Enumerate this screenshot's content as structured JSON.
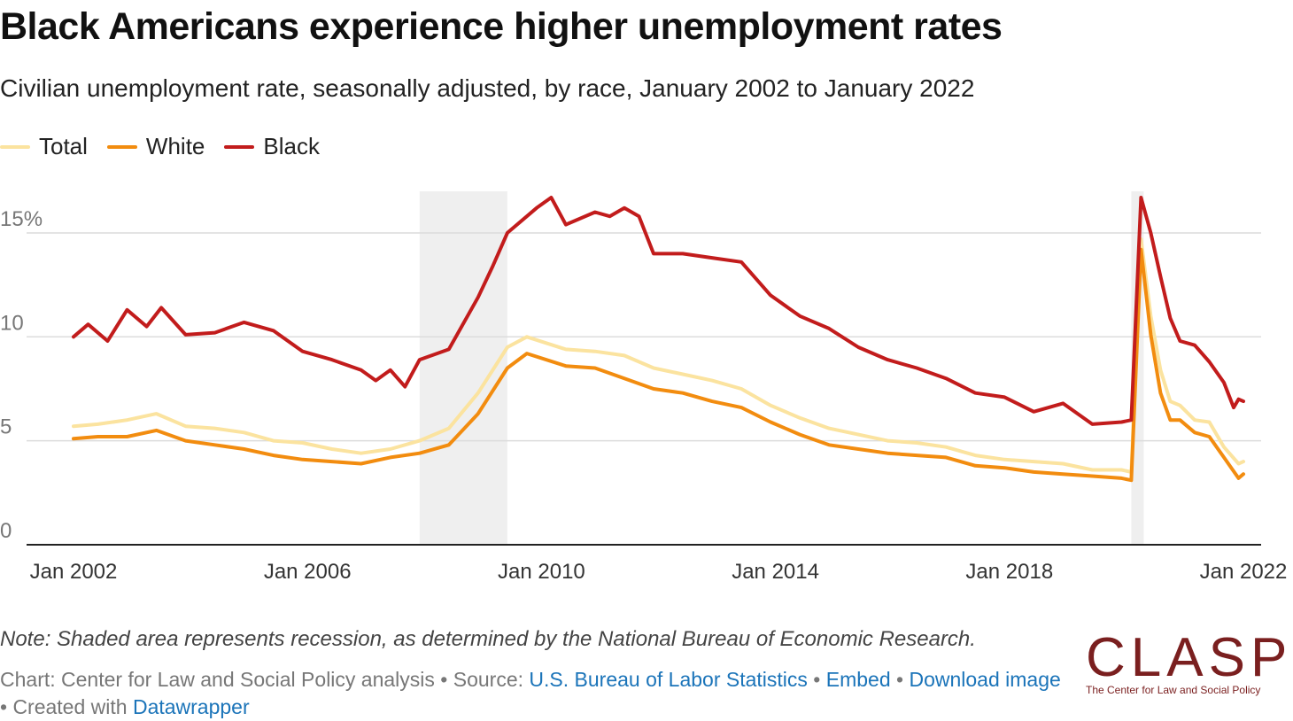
{
  "chart_data": {
    "type": "line",
    "title": "Black Americans experience higher unemployment rates",
    "subtitle": "Civilian unemployment rate, seasonally adjusted, by race, January 2002 to January 2022",
    "x_start": "2002-01",
    "x_end": "2022-01",
    "x_ticks": [
      {
        "date": "2002-01",
        "label": "Jan 2002"
      },
      {
        "date": "2006-01",
        "label": "Jan 2006"
      },
      {
        "date": "2010-01",
        "label": "Jan 2010"
      },
      {
        "date": "2014-01",
        "label": "Jan 2014"
      },
      {
        "date": "2018-01",
        "label": "Jan 2018"
      },
      {
        "date": "2022-01",
        "label": "Jan 2022"
      }
    ],
    "y_ticks": [
      {
        "value": 0,
        "label": "0"
      },
      {
        "value": 5,
        "label": "5"
      },
      {
        "value": 10,
        "label": "10"
      },
      {
        "value": 15,
        "label": "15%"
      }
    ],
    "ylim": [
      0,
      17
    ],
    "grid": true,
    "legend_position": "top-left",
    "recessions": [
      {
        "start": "2007-12",
        "end": "2009-06"
      },
      {
        "start": "2020-02",
        "end": "2020-04"
      }
    ],
    "series": [
      {
        "name": "Total",
        "color": "#fbe39f",
        "points": [
          [
            "2002-01",
            5.7
          ],
          [
            "2002-06",
            5.8
          ],
          [
            "2002-12",
            6.0
          ],
          [
            "2003-06",
            6.3
          ],
          [
            "2003-12",
            5.7
          ],
          [
            "2004-06",
            5.6
          ],
          [
            "2004-12",
            5.4
          ],
          [
            "2005-06",
            5.0
          ],
          [
            "2005-12",
            4.9
          ],
          [
            "2006-06",
            4.6
          ],
          [
            "2006-12",
            4.4
          ],
          [
            "2007-06",
            4.6
          ],
          [
            "2007-12",
            5.0
          ],
          [
            "2008-06",
            5.6
          ],
          [
            "2008-12",
            7.3
          ],
          [
            "2009-06",
            9.5
          ],
          [
            "2009-10",
            10.0
          ],
          [
            "2010-06",
            9.4
          ],
          [
            "2010-12",
            9.3
          ],
          [
            "2011-06",
            9.1
          ],
          [
            "2011-12",
            8.5
          ],
          [
            "2012-06",
            8.2
          ],
          [
            "2012-12",
            7.9
          ],
          [
            "2013-06",
            7.5
          ],
          [
            "2013-12",
            6.7
          ],
          [
            "2014-06",
            6.1
          ],
          [
            "2014-12",
            5.6
          ],
          [
            "2015-06",
            5.3
          ],
          [
            "2015-12",
            5.0
          ],
          [
            "2016-06",
            4.9
          ],
          [
            "2016-12",
            4.7
          ],
          [
            "2017-06",
            4.3
          ],
          [
            "2017-12",
            4.1
          ],
          [
            "2018-06",
            4.0
          ],
          [
            "2018-12",
            3.9
          ],
          [
            "2019-06",
            3.6
          ],
          [
            "2019-12",
            3.6
          ],
          [
            "2020-02",
            3.5
          ],
          [
            "2020-04",
            14.7
          ],
          [
            "2020-06",
            11.0
          ],
          [
            "2020-08",
            8.4
          ],
          [
            "2020-10",
            6.9
          ],
          [
            "2020-12",
            6.7
          ],
          [
            "2021-03",
            6.0
          ],
          [
            "2021-06",
            5.9
          ],
          [
            "2021-09",
            4.7
          ],
          [
            "2021-12",
            3.9
          ],
          [
            "2022-01",
            4.0
          ]
        ]
      },
      {
        "name": "White",
        "color": "#f28c0f",
        "points": [
          [
            "2002-01",
            5.1
          ],
          [
            "2002-06",
            5.2
          ],
          [
            "2002-12",
            5.2
          ],
          [
            "2003-06",
            5.5
          ],
          [
            "2003-12",
            5.0
          ],
          [
            "2004-06",
            4.8
          ],
          [
            "2004-12",
            4.6
          ],
          [
            "2005-06",
            4.3
          ],
          [
            "2005-12",
            4.1
          ],
          [
            "2006-06",
            4.0
          ],
          [
            "2006-12",
            3.9
          ],
          [
            "2007-06",
            4.2
          ],
          [
            "2007-12",
            4.4
          ],
          [
            "2008-06",
            4.8
          ],
          [
            "2008-12",
            6.3
          ],
          [
            "2009-06",
            8.5
          ],
          [
            "2009-10",
            9.2
          ],
          [
            "2010-06",
            8.6
          ],
          [
            "2010-12",
            8.5
          ],
          [
            "2011-06",
            8.0
          ],
          [
            "2011-12",
            7.5
          ],
          [
            "2012-06",
            7.3
          ],
          [
            "2012-12",
            6.9
          ],
          [
            "2013-06",
            6.6
          ],
          [
            "2013-12",
            5.9
          ],
          [
            "2014-06",
            5.3
          ],
          [
            "2014-12",
            4.8
          ],
          [
            "2015-06",
            4.6
          ],
          [
            "2015-12",
            4.4
          ],
          [
            "2016-06",
            4.3
          ],
          [
            "2016-12",
            4.2
          ],
          [
            "2017-06",
            3.8
          ],
          [
            "2017-12",
            3.7
          ],
          [
            "2018-06",
            3.5
          ],
          [
            "2018-12",
            3.4
          ],
          [
            "2019-06",
            3.3
          ],
          [
            "2019-12",
            3.2
          ],
          [
            "2020-02",
            3.1
          ],
          [
            "2020-04",
            14.2
          ],
          [
            "2020-06",
            10.1
          ],
          [
            "2020-08",
            7.3
          ],
          [
            "2020-10",
            6.0
          ],
          [
            "2020-12",
            6.0
          ],
          [
            "2021-03",
            5.4
          ],
          [
            "2021-06",
            5.2
          ],
          [
            "2021-09",
            4.2
          ],
          [
            "2021-12",
            3.2
          ],
          [
            "2022-01",
            3.4
          ]
        ]
      },
      {
        "name": "Black",
        "color": "#c21c1c",
        "points": [
          [
            "2002-01",
            10.0
          ],
          [
            "2002-04",
            10.6
          ],
          [
            "2002-08",
            9.8
          ],
          [
            "2002-12",
            11.3
          ],
          [
            "2003-04",
            10.5
          ],
          [
            "2003-07",
            11.4
          ],
          [
            "2003-12",
            10.1
          ],
          [
            "2004-06",
            10.2
          ],
          [
            "2004-12",
            10.7
          ],
          [
            "2005-06",
            10.3
          ],
          [
            "2005-12",
            9.3
          ],
          [
            "2006-06",
            8.9
          ],
          [
            "2006-12",
            8.4
          ],
          [
            "2007-03",
            7.9
          ],
          [
            "2007-06",
            8.4
          ],
          [
            "2007-09",
            7.6
          ],
          [
            "2007-12",
            8.9
          ],
          [
            "2008-06",
            9.4
          ],
          [
            "2008-12",
            11.9
          ],
          [
            "2009-03",
            13.4
          ],
          [
            "2009-06",
            15.0
          ],
          [
            "2009-12",
            16.2
          ],
          [
            "2010-03",
            16.7
          ],
          [
            "2010-06",
            15.4
          ],
          [
            "2010-12",
            16.0
          ],
          [
            "2011-03",
            15.8
          ],
          [
            "2011-06",
            16.2
          ],
          [
            "2011-09",
            15.8
          ],
          [
            "2011-12",
            14.0
          ],
          [
            "2012-06",
            14.0
          ],
          [
            "2012-12",
            13.8
          ],
          [
            "2013-06",
            13.6
          ],
          [
            "2013-12",
            12.0
          ],
          [
            "2014-06",
            11.0
          ],
          [
            "2014-12",
            10.4
          ],
          [
            "2015-06",
            9.5
          ],
          [
            "2015-12",
            8.9
          ],
          [
            "2016-06",
            8.5
          ],
          [
            "2016-12",
            8.0
          ],
          [
            "2017-06",
            7.3
          ],
          [
            "2017-12",
            7.1
          ],
          [
            "2018-06",
            6.4
          ],
          [
            "2018-12",
            6.8
          ],
          [
            "2019-06",
            5.8
          ],
          [
            "2019-12",
            5.9
          ],
          [
            "2020-02",
            6.0
          ],
          [
            "2020-04",
            16.7
          ],
          [
            "2020-06",
            15.0
          ],
          [
            "2020-08",
            12.9
          ],
          [
            "2020-10",
            10.9
          ],
          [
            "2020-12",
            9.8
          ],
          [
            "2021-03",
            9.6
          ],
          [
            "2021-06",
            8.8
          ],
          [
            "2021-09",
            7.8
          ],
          [
            "2021-11",
            6.6
          ],
          [
            "2021-12",
            7.0
          ],
          [
            "2022-01",
            6.9
          ]
        ]
      }
    ]
  },
  "note": "Note: Shaded area represents recession, as determined by the National Bureau of Economic Research.",
  "credits": {
    "chart_by": "Chart: Center for Law and Social Policy analysis",
    "sep1": " • Source: ",
    "source": "U.S. Bureau of Labor Statistics",
    "sep2": " • ",
    "embed": "Embed",
    "sep3": " • ",
    "download": "Download image",
    "sep4": " • Created with ",
    "tool": "Datawrapper"
  },
  "logo": {
    "word": "CLASP",
    "tagline": "The Center for Law and Social Policy"
  }
}
